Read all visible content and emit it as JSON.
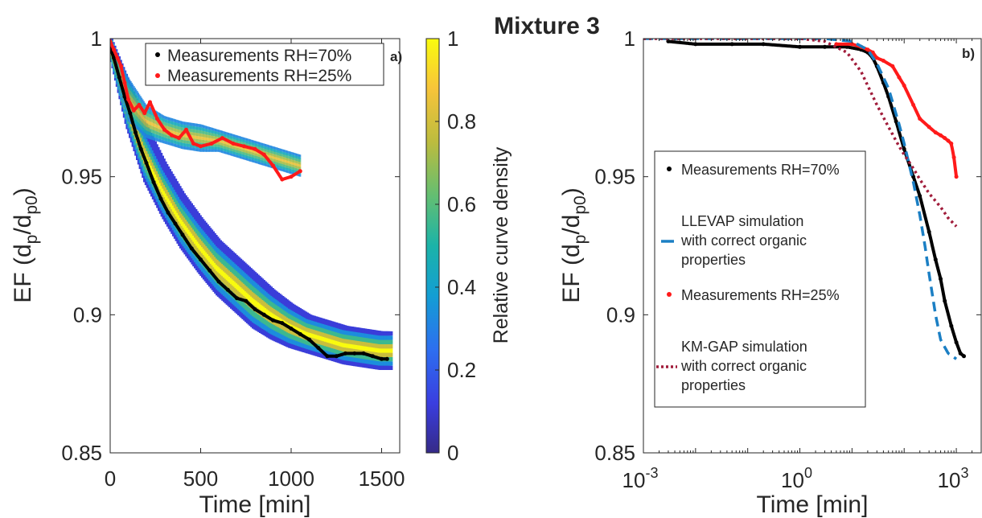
{
  "figure": {
    "suptitle": "Mixture 3"
  },
  "colors": {
    "black": "#000000",
    "red": "#ff1a1a",
    "llevap_blue": "#1b7fc4",
    "kmgap_maroon": "#a11d3b",
    "axis": "#262626"
  },
  "chart_data": [
    {
      "type": "line",
      "panel_label": "a)",
      "xlabel": "Time [min]",
      "ylabel_main": "EF (d",
      "ylabel_sub1": "p",
      "ylabel_mid": "/d",
      "ylabel_sub2": "p0",
      "ylabel_end": ")",
      "xlim": [
        0,
        1600
      ],
      "ylim": [
        0.85,
        1.0
      ],
      "xticks": [
        0,
        500,
        1000,
        1500
      ],
      "xtick_labels": [
        "0",
        "500",
        "1000",
        "1500"
      ],
      "yticks": [
        0.85,
        0.9,
        0.95,
        1.0
      ],
      "ytick_labels": [
        "0.85",
        "0.9",
        "0.95",
        "1"
      ],
      "grid": false,
      "legend_position": "top-right",
      "colorbar": {
        "label": "Relative curve density",
        "range": [
          0,
          1
        ],
        "ticks": [
          0,
          0.2,
          0.4,
          0.6,
          0.8,
          1
        ],
        "tick_labels": [
          "0",
          "0.2",
          "0.4",
          "0.6",
          "0.8",
          "1"
        ]
      },
      "series": [
        {
          "name": "Measurements RH=70%",
          "style": "dots",
          "color": "#000000",
          "x": [
            0,
            20,
            50,
            80,
            110,
            140,
            170,
            200,
            240,
            280,
            320,
            360,
            400,
            450,
            500,
            550,
            600,
            650,
            700,
            750,
            800,
            850,
            900,
            950,
            1000,
            1050,
            1100,
            1150,
            1200,
            1250,
            1300,
            1350,
            1400,
            1450,
            1500,
            1530
          ],
          "y": [
            0.997,
            0.993,
            0.986,
            0.979,
            0.973,
            0.966,
            0.96,
            0.955,
            0.948,
            0.942,
            0.937,
            0.933,
            0.929,
            0.924,
            0.92,
            0.916,
            0.912,
            0.909,
            0.906,
            0.905,
            0.902,
            0.9,
            0.898,
            0.897,
            0.895,
            0.893,
            0.891,
            0.888,
            0.885,
            0.885,
            0.886,
            0.886,
            0.886,
            0.885,
            0.884,
            0.884
          ]
        },
        {
          "name": "Measurements RH=25%",
          "style": "dots",
          "color": "#ff1a1a",
          "x": [
            0,
            20,
            40,
            60,
            80,
            100,
            130,
            160,
            190,
            220,
            260,
            300,
            340,
            380,
            420,
            460,
            500,
            560,
            620,
            680,
            740,
            800,
            850,
            900,
            950,
            1000,
            1050
          ],
          "y": [
            0.999,
            0.996,
            0.993,
            0.99,
            0.984,
            0.978,
            0.974,
            0.976,
            0.973,
            0.977,
            0.971,
            0.967,
            0.965,
            0.964,
            0.967,
            0.962,
            0.961,
            0.962,
            0.964,
            0.962,
            0.961,
            0.96,
            0.958,
            0.954,
            0.949,
            0.95,
            0.952
          ]
        },
        {
          "name": "",
          "style": "density-band",
          "x": [
            0,
            100,
            200,
            300,
            400,
            500,
            600,
            700,
            800,
            900,
            1000,
            1100,
            1200,
            1300,
            1400,
            1500,
            1550
          ],
          "y_center": [
            0.998,
            0.976,
            0.958,
            0.945,
            0.934,
            0.925,
            0.917,
            0.911,
            0.905,
            0.9,
            0.896,
            0.893,
            0.891,
            0.889,
            0.888,
            0.887,
            0.887
          ],
          "y_halfwidth": [
            0.002,
            0.008,
            0.01,
            0.01,
            0.01,
            0.01,
            0.01,
            0.01,
            0.01,
            0.009,
            0.008,
            0.007,
            0.007,
            0.007,
            0.007,
            0.007,
            0.007
          ]
        },
        {
          "name": "",
          "style": "density-band-light",
          "x": [
            0,
            100,
            200,
            300,
            400,
            500,
            600,
            700,
            800,
            900,
            1000,
            1050
          ],
          "y_center": [
            0.996,
            0.978,
            0.97,
            0.967,
            0.965,
            0.964,
            0.963,
            0.961,
            0.959,
            0.957,
            0.955,
            0.954
          ],
          "y_halfwidth": [
            0.003,
            0.008,
            0.006,
            0.005,
            0.005,
            0.005,
            0.004,
            0.004,
            0.004,
            0.004,
            0.004,
            0.004
          ]
        }
      ]
    },
    {
      "type": "line",
      "panel_label": "b)",
      "xlabel": "Time [min]",
      "ylabel_main": "EF (d",
      "ylabel_sub1": "p",
      "ylabel_mid": "/d",
      "ylabel_sub2": "p0",
      "ylabel_end": ")",
      "xscale": "log",
      "xlim": [
        0.001,
        3000
      ],
      "ylim": [
        0.85,
        1.0
      ],
      "xticks": [
        0.001,
        1,
        1000
      ],
      "xtick_base": "10",
      "xtick_exponents": [
        "-3",
        "0",
        "3"
      ],
      "yticks": [
        0.85,
        0.9,
        0.95,
        1.0
      ],
      "ytick_labels": [
        "0.85",
        "0.9",
        "0.95",
        "1"
      ],
      "grid": false,
      "legend_position": "center-left",
      "legend_entries": [
        {
          "lines": [
            "Measurements RH=70%"
          ],
          "style": "dot",
          "color": "#000000"
        },
        {
          "lines": [
            "LLEVAP simulation",
            "with correct organic",
            "properties"
          ],
          "style": "dash",
          "color": "#1b7fc4"
        },
        {
          "lines": [
            "Measurements RH=25%"
          ],
          "style": "dot",
          "color": "#ff1a1a"
        },
        {
          "lines": [
            "KM-GAP simulation",
            "with correct organic",
            "properties"
          ],
          "style": "dotted",
          "color": "#a11d3b"
        }
      ],
      "series": [
        {
          "name": "Measurements RH=70%",
          "style": "dots",
          "color": "#000000",
          "x": [
            0.003,
            0.01,
            0.05,
            0.2,
            1,
            3,
            8,
            15,
            20,
            25,
            30,
            40,
            50,
            70,
            100,
            150,
            200,
            300,
            400,
            500,
            600,
            800,
            1000,
            1200,
            1400
          ],
          "y": [
            0.999,
            0.998,
            0.998,
            0.998,
            0.997,
            0.997,
            0.997,
            0.996,
            0.995,
            0.993,
            0.99,
            0.984,
            0.979,
            0.97,
            0.96,
            0.95,
            0.943,
            0.93,
            0.92,
            0.913,
            0.905,
            0.896,
            0.89,
            0.886,
            0.885
          ]
        },
        {
          "name": "Measurements RH=25%",
          "style": "dots",
          "color": "#ff1a1a",
          "x": [
            5,
            10,
            15,
            20,
            25,
            30,
            40,
            60,
            80,
            100,
            150,
            200,
            300,
            400,
            500,
            600,
            700,
            800,
            900,
            1000
          ],
          "y": [
            0.998,
            0.998,
            0.997,
            0.996,
            0.995,
            0.993,
            0.992,
            0.99,
            0.986,
            0.983,
            0.976,
            0.971,
            0.968,
            0.966,
            0.965,
            0.964,
            0.963,
            0.962,
            0.957,
            0.95
          ]
        },
        {
          "name": "LLEVAP simulation with correct organic properties",
          "style": "dash",
          "color": "#1b7fc4",
          "x": [
            0.001,
            0.01,
            0.1,
            1,
            3,
            10,
            20,
            30,
            50,
            80,
            100,
            150,
            200,
            250,
            300,
            400,
            500,
            700,
            1000
          ],
          "y": [
            1.0,
            1.0,
            1.0,
            1.0,
            1.0,
            0.999,
            0.996,
            0.991,
            0.982,
            0.969,
            0.962,
            0.948,
            0.936,
            0.925,
            0.915,
            0.9,
            0.891,
            0.886,
            0.884
          ]
        },
        {
          "name": "KM-GAP simulation with correct organic properties",
          "style": "dotted",
          "color": "#a11d3b",
          "x": [
            0.001,
            0.01,
            0.1,
            1,
            3,
            8,
            15,
            20,
            30,
            50,
            80,
            100,
            150,
            200,
            300,
            500,
            700,
            1000
          ],
          "y": [
            1.0,
            1.0,
            1.0,
            1.0,
            0.999,
            0.995,
            0.988,
            0.983,
            0.976,
            0.968,
            0.961,
            0.958,
            0.953,
            0.949,
            0.944,
            0.939,
            0.935,
            0.932
          ]
        }
      ]
    }
  ]
}
